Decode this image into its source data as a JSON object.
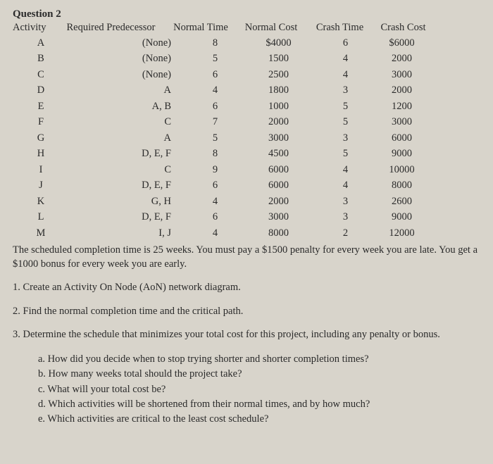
{
  "question_label": "Question 2",
  "headers": {
    "activity": "Activity",
    "predecessor": "Required Predecessor",
    "normal_time": "Normal Time",
    "normal_cost": "Normal Cost",
    "crash_time": "Crash Time",
    "crash_cost": "Crash Cost"
  },
  "rows": [
    {
      "activity": "A",
      "predecessor": "(None)",
      "normal_time": "8",
      "normal_cost": "$4000",
      "crash_time": "6",
      "crash_cost": "$6000"
    },
    {
      "activity": "B",
      "predecessor": "(None)",
      "normal_time": "5",
      "normal_cost": "1500",
      "crash_time": "4",
      "crash_cost": "2000"
    },
    {
      "activity": "C",
      "predecessor": "(None)",
      "normal_time": "6",
      "normal_cost": "2500",
      "crash_time": "4",
      "crash_cost": "3000"
    },
    {
      "activity": "D",
      "predecessor": "A",
      "normal_time": "4",
      "normal_cost": "1800",
      "crash_time": "3",
      "crash_cost": "2000"
    },
    {
      "activity": "E",
      "predecessor": "A, B",
      "normal_time": "6",
      "normal_cost": "1000",
      "crash_time": "5",
      "crash_cost": "1200"
    },
    {
      "activity": "F",
      "predecessor": "C",
      "normal_time": "7",
      "normal_cost": "2000",
      "crash_time": "5",
      "crash_cost": "3000"
    },
    {
      "activity": "G",
      "predecessor": "A",
      "normal_time": "5",
      "normal_cost": "3000",
      "crash_time": "3",
      "crash_cost": "6000"
    },
    {
      "activity": "H",
      "predecessor": "D, E, F",
      "normal_time": "8",
      "normal_cost": "4500",
      "crash_time": "5",
      "crash_cost": "9000"
    },
    {
      "activity": "I",
      "predecessor": "C",
      "normal_time": "9",
      "normal_cost": "6000",
      "crash_time": "4",
      "crash_cost": "10000"
    },
    {
      "activity": "J",
      "predecessor": "D, E, F",
      "normal_time": "6",
      "normal_cost": "6000",
      "crash_time": "4",
      "crash_cost": "8000"
    },
    {
      "activity": "K",
      "predecessor": "G, H",
      "normal_time": "4",
      "normal_cost": "2000",
      "crash_time": "3",
      "crash_cost": "2600"
    },
    {
      "activity": "L",
      "predecessor": "D, E, F",
      "normal_time": "6",
      "normal_cost": "3000",
      "crash_time": "3",
      "crash_cost": "9000"
    },
    {
      "activity": "M",
      "predecessor": "I, J",
      "normal_time": "4",
      "normal_cost": "8000",
      "crash_time": "2",
      "crash_cost": "12000"
    }
  ],
  "body_text": "The scheduled completion time is 25 weeks. You must pay a $1500 penalty for every week you are late. You get a $1000 bonus for every week you are early.",
  "q1": "1. Create an Activity On Node (AoN) network diagram.",
  "q2": "2. Find the normal completion time and the critical path.",
  "q3": "3. Determine the schedule that minimizes your total cost for this project, including any penalty or bonus.",
  "sub": {
    "a": "a. How did you decide when to stop trying shorter and shorter completion times?",
    "b": "b. How many weeks total should the project take?",
    "c": "c. What will your total cost be?",
    "d": "d. Which activities will be shortened from their normal times, and by how much?",
    "e": "e. Which activities are critical to the least cost schedule?"
  }
}
